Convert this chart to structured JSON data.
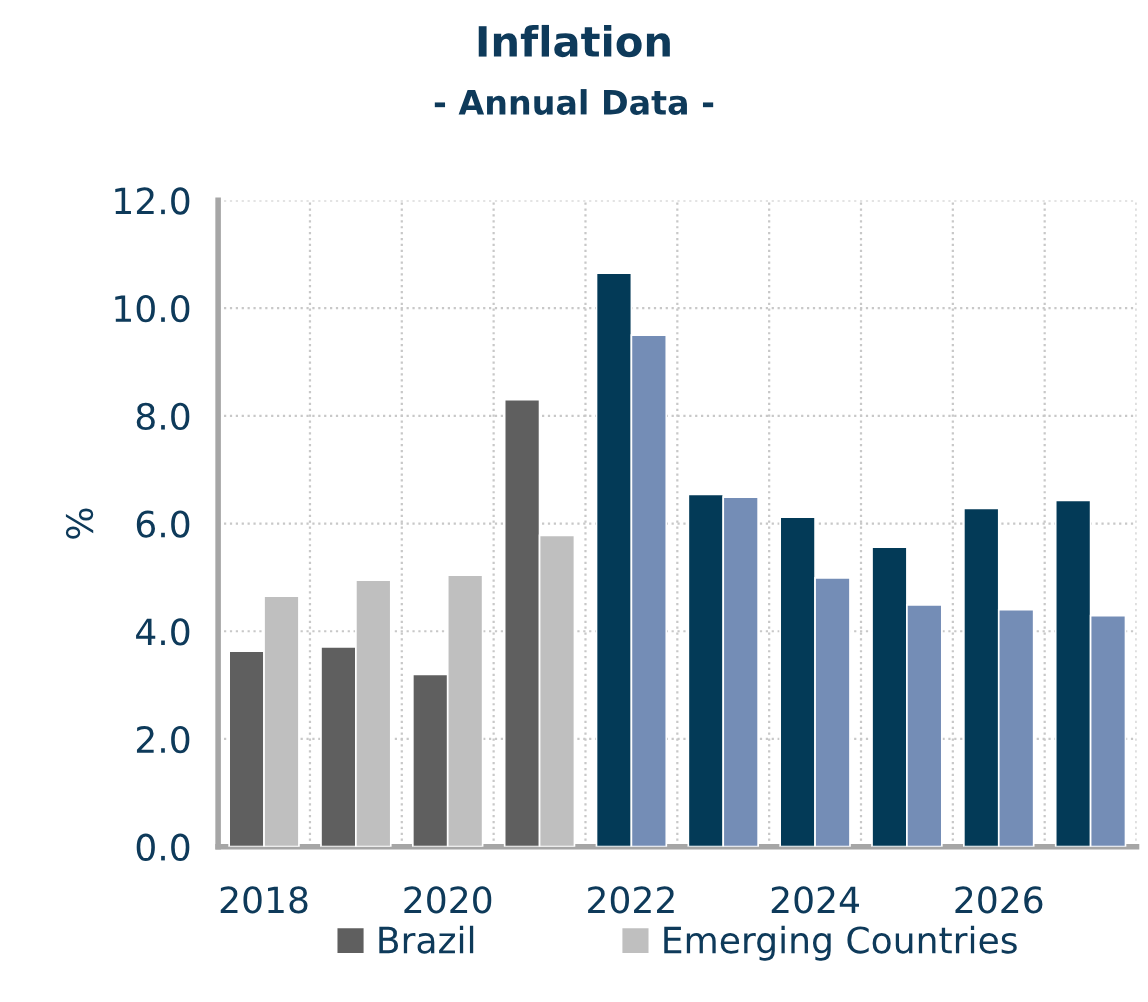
{
  "chart_data": {
    "type": "bar",
    "title": "Inflation",
    "subtitle": "- Annual Data -",
    "ylabel": "%",
    "categories": [
      "2018",
      null,
      "2020",
      null,
      "2022",
      null,
      "2024",
      null,
      "2026",
      null
    ],
    "series": [
      {
        "name": "Brazil",
        "color": "#5f5f5f",
        "colors": [
          "#5f5f5f",
          "#5f5f5f",
          "#5f5f5f",
          "#5f5f5f",
          "#033a57",
          "#033a57",
          "#033a57",
          "#033a57",
          "#033a57",
          "#033a57"
        ],
        "values": [
          3.63,
          3.71,
          3.2,
          8.3,
          10.65,
          6.54,
          6.12,
          5.56,
          6.28,
          6.43
        ]
      },
      {
        "name": "Emerging Countries",
        "color": "#bfbfbf",
        "colors": [
          "#bfbfbf",
          "#bfbfbf",
          "#bfbfbf",
          "#bfbfbf",
          "#748db6",
          "#748db6",
          "#748db6",
          "#748db6",
          "#748db6",
          "#748db6"
        ],
        "values": [
          4.65,
          4.95,
          5.04,
          5.78,
          9.5,
          6.49,
          4.99,
          4.49,
          4.4,
          4.29
        ]
      }
    ],
    "ylim": [
      0,
      12
    ],
    "yticks": [
      {
        "value": 0,
        "label": "0.0"
      },
      {
        "value": 2,
        "label": "2.0"
      },
      {
        "value": 4,
        "label": "4.0"
      },
      {
        "value": 6,
        "label": "6.0"
      },
      {
        "value": 8,
        "label": "8.0"
      },
      {
        "value": 10,
        "label": "10.0"
      },
      {
        "value": 12,
        "label": "12.0"
      }
    ],
    "grid": true,
    "legend": "bottom"
  }
}
